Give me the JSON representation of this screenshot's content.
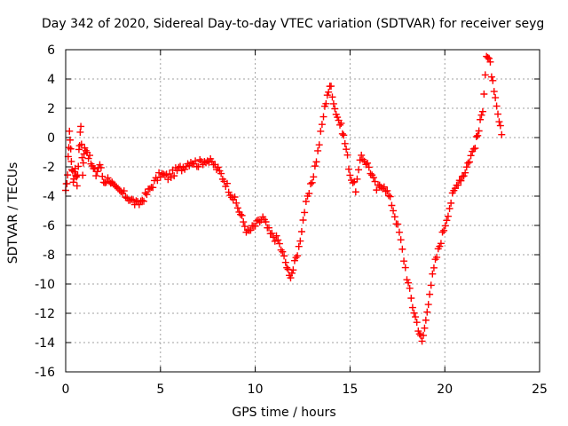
{
  "chart_data": {
    "type": "scatter",
    "title": "Day 342 of 2020, Sidereal Day-to-day VTEC variation (SDTVAR) for receiver seyg",
    "xlabel": "GPS time / hours",
    "ylabel": "SDTVAR / TECUs",
    "xlim": [
      0,
      25
    ],
    "ylim": [
      -16,
      6
    ],
    "xticks": [
      0,
      5,
      10,
      15,
      20,
      25
    ],
    "yticks": [
      6,
      4,
      2,
      0,
      -2,
      -4,
      -6,
      -8,
      -10,
      -12,
      -14,
      -16
    ],
    "grid": true,
    "marker": "+",
    "color": "#ff0000",
    "series": [
      {
        "name": "SDTVAR",
        "x": [
          0.0,
          0.1,
          0.2,
          0.3,
          0.4,
          0.5,
          0.6,
          0.7,
          0.8,
          0.9,
          1.0,
          1.2,
          1.4,
          1.6,
          1.8,
          2.0,
          2.3,
          2.6,
          3.0,
          3.4,
          3.8,
          4.2,
          4.6,
          5.0,
          5.4,
          5.8,
          6.2,
          6.6,
          7.0,
          7.4,
          7.8,
          8.2,
          8.6,
          9.0,
          9.3,
          9.6,
          10.0,
          10.4,
          10.8,
          11.2,
          11.6,
          11.8,
          12.0,
          12.3,
          12.6,
          13.0,
          13.3,
          13.6,
          13.8,
          14.0,
          14.2,
          14.4,
          14.6,
          14.8,
          15.0,
          15.3,
          15.6,
          16.0,
          16.4,
          16.8,
          17.2,
          17.6,
          18.0,
          18.3,
          18.6,
          18.8,
          19.0,
          19.2,
          19.5,
          19.8,
          20.1,
          20.4,
          20.7,
          21.0,
          21.3,
          21.6,
          21.8,
          22.0,
          22.2,
          22.4,
          22.6,
          22.8,
          23.0
        ],
        "y": [
          -3.8,
          -2.5,
          0.5,
          -1.5,
          -3.0,
          -2.0,
          -3.2,
          -1.0,
          0.8,
          -2.5,
          -0.5,
          -1.2,
          -2.0,
          -2.5,
          -1.8,
          -3.0,
          -2.8,
          -3.5,
          -3.8,
          -4.2,
          -4.6,
          -4.0,
          -3.2,
          -2.5,
          -2.7,
          -2.3,
          -2.0,
          -1.6,
          -1.8,
          -1.5,
          -1.8,
          -2.5,
          -3.5,
          -4.5,
          -5.5,
          -6.5,
          -6.0,
          -5.5,
          -6.6,
          -7.0,
          -8.5,
          -9.5,
          -9.0,
          -7.5,
          -5.0,
          -3.0,
          -1.0,
          1.5,
          3.0,
          3.5,
          2.0,
          1.2,
          0.5,
          -0.8,
          -2.5,
          -3.5,
          -1.2,
          -2.0,
          -3.5,
          -3.2,
          -4.5,
          -6.5,
          -9.5,
          -11.5,
          -13.0,
          -14.0,
          -12.5,
          -10.5,
          -8.5,
          -7.0,
          -5.5,
          -4.0,
          -3.0,
          -2.5,
          -1.5,
          -0.5,
          0.5,
          2.0,
          5.6,
          5.0,
          3.0,
          1.5,
          0.2
        ]
      }
    ]
  }
}
